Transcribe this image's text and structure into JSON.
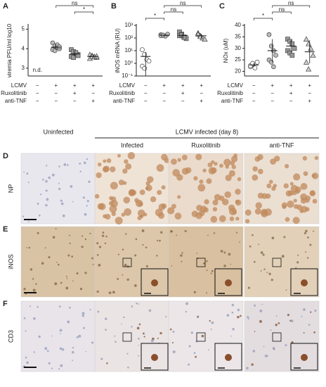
{
  "chart_data": [
    {
      "type": "dotplot",
      "panel": "A",
      "ylabel": "viremia PFU/ml log10",
      "ylim": [
        2.6,
        5.2
      ],
      "yticks": [
        3,
        4,
        5
      ],
      "groups": [
        {
          "values": [],
          "label": "n.d.",
          "marker": "circle",
          "color": "#ffffff"
        },
        {
          "values": [
            4.3,
            4.15,
            4.05,
            4.0,
            3.95,
            3.9,
            4.2,
            4.1
          ],
          "mean": 4.08,
          "sd": 0.14,
          "marker": "circle",
          "color": "#bbbbbb"
        },
        {
          "values": [
            3.95,
            3.85,
            3.75,
            3.7,
            3.6,
            3.55,
            3.8,
            3.65
          ],
          "mean": 3.73,
          "sd": 0.13,
          "marker": "square",
          "color": "#999999"
        },
        {
          "values": [
            3.7,
            3.65,
            3.6,
            3.55,
            3.5,
            3.6,
            3.58,
            3.62
          ],
          "mean": 3.6,
          "sd": 0.06,
          "marker": "triangle",
          "color": "#cccccc"
        }
      ],
      "brackets": [
        {
          "from": 1,
          "to": 3,
          "label": "ns"
        },
        {
          "from": 2,
          "to": 3,
          "label": "*"
        }
      ],
      "rows": [
        {
          "label": "LCMV",
          "signs": [
            "−",
            "+",
            "+",
            "+"
          ]
        },
        {
          "label": "Ruxolitinib",
          "signs": [
            "−",
            "−",
            "+",
            "−"
          ]
        },
        {
          "label": "anti-TNF",
          "signs": [
            "−",
            "−",
            "−",
            "+"
          ]
        }
      ]
    },
    {
      "type": "dotplot",
      "panel": "B",
      "ylabel": "iNOS mRNA (RU)",
      "log": true,
      "ylim": [
        0.1,
        1000
      ],
      "yticks": [
        {
          "value": 0.1,
          "label": "10⁻¹"
        },
        {
          "value": 1,
          "label": "10⁰"
        },
        {
          "value": 10,
          "label": "10¹"
        },
        {
          "value": 100,
          "label": "10²"
        },
        {
          "value": 1000,
          "label": "10³"
        }
      ],
      "groups": [
        {
          "values": [
            12,
            5,
            2,
            1.5,
            0.6,
            0.4
          ],
          "mean": 3.5,
          "sd": 4.3,
          "marker": "circle",
          "color": "#ffffff"
        },
        {
          "values": [
            180,
            160,
            140,
            200,
            150,
            170
          ],
          "mean": 165,
          "sd": 21,
          "marker": "circle",
          "color": "#bbbbbb"
        },
        {
          "values": [
            300,
            200,
            120,
            90,
            150,
            180,
            110
          ],
          "mean": 160,
          "sd": 70,
          "marker": "square",
          "color": "#999999"
        },
        {
          "values": [
            250,
            150,
            100,
            80,
            200,
            130
          ],
          "mean": 150,
          "sd": 60,
          "marker": "triangle",
          "color": "#cccccc"
        }
      ],
      "brackets": [
        {
          "from": 1,
          "to": 3,
          "label": "ns"
        },
        {
          "from": 1,
          "to": 2,
          "label": "ns"
        },
        {
          "from": 0,
          "to": 1,
          "label": "*"
        }
      ],
      "rows": [
        {
          "label": "LCMV",
          "signs": [
            "−",
            "+",
            "+",
            "+"
          ]
        },
        {
          "label": "Ruxolitinib",
          "signs": [
            "−",
            "−",
            "+",
            "−"
          ]
        },
        {
          "label": "anti-TNF",
          "signs": [
            "−",
            "−",
            "−",
            "+"
          ]
        }
      ]
    },
    {
      "type": "dotplot",
      "panel": "C",
      "ylabel": "NOx (uM)",
      "ylim": [
        18,
        40
      ],
      "yticks": [
        20,
        25,
        30,
        35,
        40
      ],
      "groups": [
        {
          "values": [
            22,
            23,
            21.5,
            24,
            22.5,
            23.5
          ],
          "mean": 22.8,
          "sd": 0.9,
          "marker": "circle",
          "color": "#ffffff"
        },
        {
          "values": [
            36,
            31,
            29,
            27,
            25,
            24,
            22
          ],
          "mean": 29,
          "sd": 5,
          "marker": "circle",
          "color": "#bbbbbb"
        },
        {
          "values": [
            34,
            33,
            32,
            30,
            29,
            28,
            27
          ],
          "mean": 31,
          "sd": 2.5,
          "marker": "square",
          "color": "#999999"
        },
        {
          "values": [
            34,
            32,
            30,
            27,
            24,
            21
          ],
          "mean": 28.5,
          "sd": 5,
          "marker": "triangle",
          "color": "#cccccc"
        }
      ],
      "brackets": [
        {
          "from": 1,
          "to": 3,
          "label": "ns"
        },
        {
          "from": 1,
          "to": 2,
          "label": "ns"
        },
        {
          "from": 0,
          "to": 1,
          "label": "*"
        }
      ],
      "rows": [
        {
          "label": "LCMV",
          "signs": [
            "−",
            "+",
            "+",
            "+"
          ]
        },
        {
          "label": "Ruxolitinib",
          "signs": [
            "−",
            "−",
            "+",
            "−"
          ]
        },
        {
          "label": "anti-TNF",
          "signs": [
            "−",
            "−",
            "−",
            "+"
          ]
        }
      ]
    }
  ],
  "histology": {
    "group_header": "LCMV infected (day 8)",
    "columns": [
      "Uninfected",
      "Infected",
      "Ruxolitinib",
      "anti-TNF"
    ],
    "rows": [
      {
        "panel": "D",
        "label": "NP"
      },
      {
        "panel": "E",
        "label": "iNOS"
      },
      {
        "panel": "F",
        "label": "CD3"
      }
    ]
  }
}
